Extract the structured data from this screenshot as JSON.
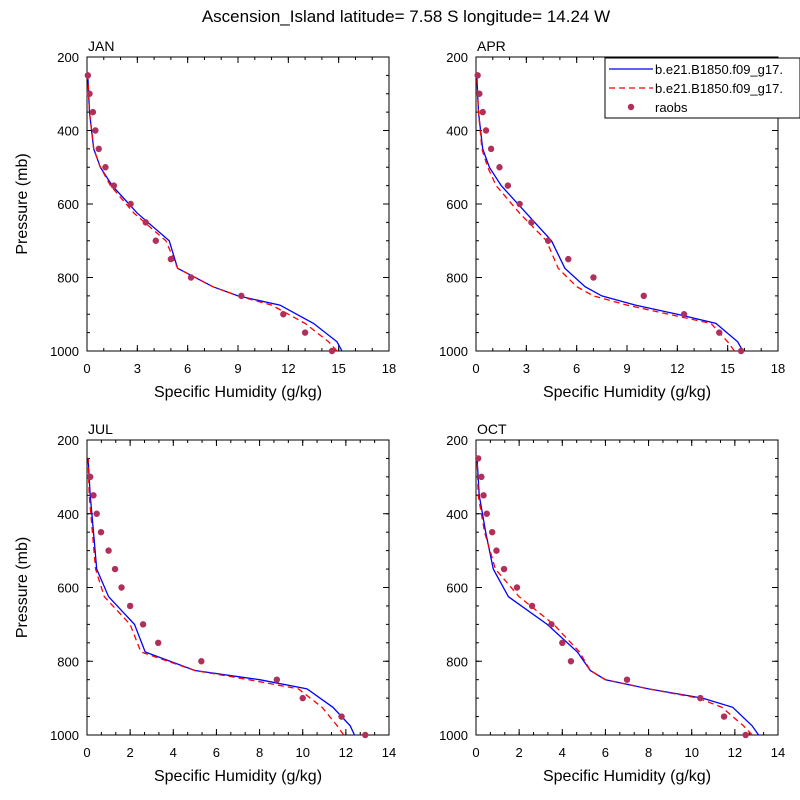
{
  "title": "Ascension_Island  latitude= 7.58 S longitude= 14.24 W",
  "legend": {
    "entries": [
      {
        "label": "b.e21.B1850.f09_g17.",
        "style": "solid",
        "color": "#0000ff"
      },
      {
        "label": "b.e21.B1850.f09_g17.",
        "style": "dashed",
        "color": "#ff0000"
      },
      {
        "label": "raobs",
        "style": "marker",
        "color": "#b0305a"
      }
    ]
  },
  "chart_data": [
    {
      "type": "line",
      "panel": "JAN",
      "xlabel": "Specific Humidity (g/kg)",
      "ylabel": "Pressure (mb)",
      "xlim": [
        0,
        18
      ],
      "xticks": [
        0,
        3,
        6,
        9,
        12,
        15,
        18
      ],
      "ylim": [
        1000,
        200
      ],
      "yticks": [
        200,
        400,
        600,
        800,
        1000
      ],
      "series": [
        {
          "style": "solid",
          "color": "#0000ff",
          "x": [
            15.2,
            14.9,
            13.5,
            11.5,
            9.0,
            7.5,
            5.4,
            4.9,
            3.0,
            1.5,
            0.8,
            0.4,
            0.15,
            0.05
          ],
          "y": [
            1000,
            975,
            925,
            875,
            850,
            825,
            775,
            700,
            625,
            550,
            500,
            450,
            350,
            250
          ]
        },
        {
          "style": "dashed",
          "color": "#ff0000",
          "x": [
            14.9,
            14.4,
            13.0,
            11.0,
            9.0,
            7.5,
            5.4,
            4.7,
            2.8,
            1.4,
            0.8,
            0.4,
            0.15,
            0.05
          ],
          "y": [
            1000,
            975,
            925,
            875,
            850,
            825,
            775,
            700,
            625,
            550,
            500,
            450,
            350,
            250
          ]
        },
        {
          "style": "marker",
          "color": "#b0305a",
          "x": [
            14.6,
            13.0,
            11.7,
            9.2,
            6.2,
            5.0,
            4.1,
            3.5,
            2.6,
            1.6,
            1.1,
            0.7,
            0.5,
            0.35,
            0.15,
            0.05
          ],
          "y": [
            1000,
            950,
            900,
            850,
            800,
            750,
            700,
            650,
            600,
            550,
            500,
            450,
            400,
            350,
            300,
            250
          ]
        }
      ]
    },
    {
      "type": "line",
      "panel": "APR",
      "xlabel": "Specific Humidity (g/kg)",
      "ylabel": "",
      "xlim": [
        0,
        18
      ],
      "xticks": [
        0,
        3,
        6,
        9,
        12,
        15,
        18
      ],
      "ylim": [
        1000,
        200
      ],
      "yticks": [
        200,
        400,
        600,
        800,
        1000
      ],
      "series": [
        {
          "style": "solid",
          "color": "#0000ff",
          "x": [
            15.9,
            15.6,
            14.3,
            12.0,
            9.5,
            7.5,
            6.5,
            5.3,
            4.5,
            3.0,
            1.5,
            0.8,
            0.4,
            0.15,
            0.05
          ],
          "y": [
            1000,
            975,
            925,
            900,
            875,
            850,
            825,
            775,
            700,
            625,
            550,
            500,
            450,
            350,
            250
          ]
        },
        {
          "style": "dashed",
          "color": "#ff0000",
          "x": [
            15.4,
            15.0,
            14.0,
            11.5,
            9.0,
            7.0,
            6.0,
            4.9,
            4.2,
            2.6,
            1.2,
            0.7,
            0.35,
            0.15,
            0.05
          ],
          "y": [
            1000,
            975,
            925,
            900,
            875,
            850,
            825,
            775,
            700,
            625,
            550,
            500,
            450,
            350,
            250
          ]
        },
        {
          "style": "marker",
          "color": "#b0305a",
          "x": [
            15.8,
            14.5,
            12.4,
            10.0,
            7.0,
            5.5,
            4.3,
            3.3,
            2.6,
            1.9,
            1.4,
            0.9,
            0.6,
            0.4,
            0.2,
            0.1
          ],
          "y": [
            1000,
            950,
            900,
            850,
            800,
            750,
            700,
            650,
            600,
            550,
            500,
            450,
            400,
            350,
            300,
            250
          ]
        }
      ]
    },
    {
      "type": "line",
      "panel": "JUL",
      "xlabel": "Specific Humidity (g/kg)",
      "ylabel": "Pressure (mb)",
      "xlim": [
        0,
        14
      ],
      "xticks": [
        0,
        2,
        4,
        6,
        8,
        10,
        12,
        14
      ],
      "ylim": [
        1000,
        200
      ],
      "yticks": [
        200,
        400,
        600,
        800,
        1000
      ],
      "series": [
        {
          "style": "solid",
          "color": "#0000ff",
          "x": [
            12.4,
            12.2,
            11.4,
            10.2,
            8.0,
            5.0,
            2.7,
            2.2,
            1.0,
            0.45,
            0.3,
            0.15,
            0.05
          ],
          "y": [
            1000,
            975,
            925,
            875,
            850,
            825,
            775,
            700,
            625,
            550,
            450,
            350,
            250
          ]
        },
        {
          "style": "dashed",
          "color": "#ff0000",
          "x": [
            11.9,
            11.6,
            10.9,
            9.8,
            7.5,
            5.0,
            2.5,
            2.0,
            0.8,
            0.4,
            0.25,
            0.1,
            0.05
          ],
          "y": [
            1000,
            975,
            925,
            875,
            850,
            825,
            775,
            700,
            625,
            550,
            450,
            350,
            250
          ]
        },
        {
          "style": "marker",
          "color": "#b0305a",
          "x": [
            12.9,
            11.8,
            10.0,
            8.8,
            5.3,
            3.3,
            2.6,
            2.0,
            1.6,
            1.3,
            1.0,
            0.65,
            0.45,
            0.3,
            0.15
          ],
          "y": [
            1000,
            950,
            900,
            850,
            800,
            750,
            700,
            650,
            600,
            550,
            500,
            450,
            400,
            350,
            300
          ]
        }
      ]
    },
    {
      "type": "line",
      "panel": "OCT",
      "xlabel": "Specific Humidity (g/kg)",
      "ylabel": "",
      "xlim": [
        0,
        14
      ],
      "xticks": [
        0,
        2,
        4,
        6,
        8,
        10,
        12,
        14
      ],
      "ylim": [
        1000,
        200
      ],
      "yticks": [
        200,
        400,
        600,
        800,
        1000
      ],
      "series": [
        {
          "style": "solid",
          "color": "#0000ff",
          "x": [
            13.1,
            12.8,
            11.9,
            10.5,
            8.0,
            6.0,
            5.3,
            4.7,
            3.3,
            1.5,
            0.8,
            0.45,
            0.3,
            0.15,
            0.05
          ],
          "y": [
            1000,
            975,
            925,
            900,
            875,
            850,
            825,
            775,
            700,
            625,
            550,
            450,
            400,
            350,
            250
          ]
        },
        {
          "style": "dashed",
          "color": "#ff0000",
          "x": [
            12.8,
            12.4,
            11.4,
            10.3,
            8.0,
            6.0,
            5.3,
            4.8,
            3.6,
            2.0,
            0.9,
            0.4,
            0.25,
            0.1,
            0.05
          ],
          "y": [
            1000,
            975,
            925,
            900,
            875,
            850,
            825,
            775,
            700,
            625,
            550,
            450,
            400,
            350,
            250
          ]
        },
        {
          "style": "marker",
          "color": "#b0305a",
          "x": [
            12.5,
            11.5,
            10.4,
            7.0,
            4.4,
            4.0,
            3.5,
            2.6,
            1.9,
            1.3,
            0.95,
            0.75,
            0.5,
            0.35,
            0.25,
            0.1
          ],
          "y": [
            1000,
            950,
            900,
            850,
            800,
            750,
            700,
            650,
            600,
            550,
            500,
            450,
            400,
            350,
            300,
            250
          ]
        }
      ]
    }
  ]
}
